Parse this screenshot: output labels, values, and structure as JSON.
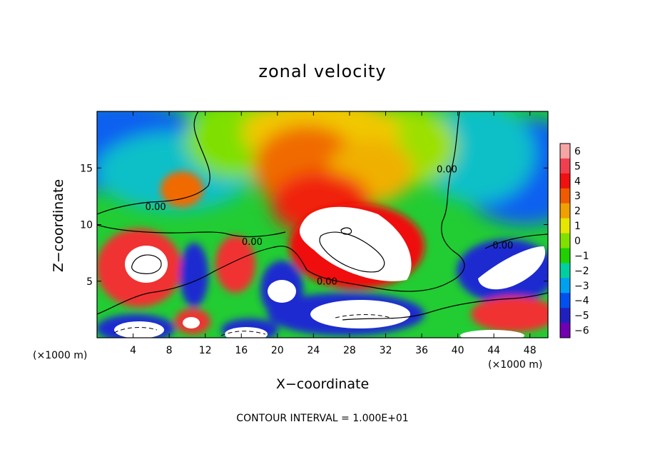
{
  "chart_data": {
    "type": "heatmap",
    "title": "zonal velocity",
    "xlabel": "X−coordinate",
    "ylabel": "Z−coordinate",
    "x_unit_label": "(×1000 m)",
    "xlim": [
      0,
      50
    ],
    "ylim": [
      0,
      20
    ],
    "x_ticks": [
      4,
      8,
      12,
      16,
      20,
      24,
      28,
      32,
      36,
      40,
      44,
      48
    ],
    "y_ticks": [
      5,
      10,
      15
    ],
    "colorbar": {
      "levels": [
        6,
        5,
        4,
        3,
        2,
        1,
        0,
        -1,
        -2,
        -3,
        -4,
        -5,
        -6
      ],
      "labels": [
        "6",
        "5",
        "4",
        "3",
        "2",
        "1",
        "0",
        "−1",
        "−2",
        "−3",
        "−4",
        "−5",
        "−6"
      ],
      "colors": [
        "#f6a5a5",
        "#f04050",
        "#f01010",
        "#f05a00",
        "#f0a000",
        "#e6e600",
        "#80e000",
        "#20d000",
        "#00d0a0",
        "#00a0f0",
        "#0050f0",
        "#2020c0",
        "#7000b0"
      ]
    },
    "contour_labels": [
      {
        "text": "0.00",
        "x": 6.5,
        "y": 11.3
      },
      {
        "text": "0.00",
        "x": 17.2,
        "y": 8.2
      },
      {
        "text": "0.00",
        "x": 25.5,
        "y": 4.7
      },
      {
        "text": "0.00",
        "x": 38.8,
        "y": 14.6
      },
      {
        "text": "0.00",
        "x": 45.0,
        "y": 7.9
      }
    ],
    "contour_interval_text": "CONTOUR INTERVAL = 1.000E+01",
    "grid": false
  }
}
